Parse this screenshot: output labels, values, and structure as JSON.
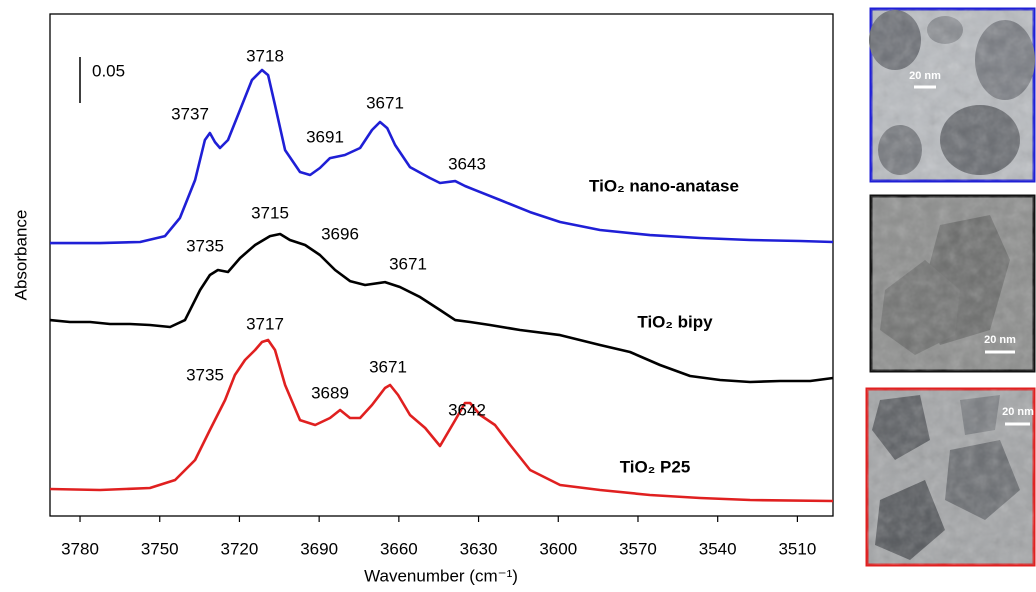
{
  "chart_data": {
    "type": "line",
    "xlabel": "Wavenumber (cm⁻¹)",
    "ylabel": "Absorbance",
    "xlim": [
      3791.3,
      3496.6
    ],
    "ylim": [
      0,
      0.5457
    ],
    "xticks": [
      3780,
      3750,
      3720,
      3690,
      3660,
      3630,
      3600,
      3570,
      3540,
      3510
    ],
    "scale_bar": {
      "value": 0.05,
      "label": "0.05"
    },
    "series": [
      {
        "name": "TiO₂ nano-anatase",
        "color": "#1f1fd6",
        "x": [
          3791.3,
          3772.5,
          3757.4,
          3748.0,
          3742.4,
          3736.7,
          3733.0,
          3731.1,
          3729.2,
          3727.3,
          3724.3,
          3719.8,
          3715.3,
          3711.5,
          3709.2,
          3706.6,
          3702.8,
          3697.2,
          3693.4,
          3689.7,
          3685.9,
          3680.3,
          3674.6,
          3670.1,
          3667.1,
          3664.4,
          3661.4,
          3655.8,
          3648.3,
          3644.5,
          3638.8,
          3635.1,
          3631.3,
          3621.9,
          3610.6,
          3599.3,
          3584.3,
          3565.5,
          3546.6,
          3527.8,
          3509.0,
          3496.6
        ],
        "values": [
          0.2967,
          0.2967,
          0.2978,
          0.3043,
          0.3239,
          0.3652,
          0.4087,
          0.4163,
          0.4065,
          0.4,
          0.4087,
          0.4413,
          0.4739,
          0.4848,
          0.4793,
          0.4467,
          0.3978,
          0.3739,
          0.3707,
          0.3783,
          0.3891,
          0.3924,
          0.4,
          0.4196,
          0.4283,
          0.4217,
          0.4033,
          0.3793,
          0.3674,
          0.362,
          0.3641,
          0.3587,
          0.3543,
          0.3435,
          0.3304,
          0.3196,
          0.3109,
          0.3054,
          0.3022,
          0.3,
          0.2989,
          0.2978
        ],
        "peak_labels": [
          3737,
          3718,
          3691,
          3671,
          3643
        ]
      },
      {
        "name": "TiO₂ bipy",
        "color": "#000000",
        "x": [
          3791.3,
          3783.8,
          3776.2,
          3768.7,
          3761.2,
          3753.7,
          3746.1,
          3740.5,
          3734.8,
          3731.1,
          3728.1,
          3724.3,
          3719.8,
          3714.1,
          3708.5,
          3704.7,
          3701.0,
          3695.3,
          3689.7,
          3684.0,
          3678.4,
          3672.7,
          3665.2,
          3659.6,
          3652.0,
          3644.5,
          3638.8,
          3633.2,
          3625.7,
          3614.4,
          3599.3,
          3584.3,
          3573.0,
          3561.7,
          3550.4,
          3539.1,
          3527.8,
          3516.5,
          3505.2,
          3496.6
        ],
        "values": [
          0.213,
          0.2109,
          0.2109,
          0.2087,
          0.2087,
          0.2076,
          0.2054,
          0.213,
          0.2457,
          0.262,
          0.2674,
          0.2652,
          0.2804,
          0.2946,
          0.3043,
          0.3065,
          0.3,
          0.2946,
          0.2837,
          0.2674,
          0.2554,
          0.2511,
          0.2543,
          0.2489,
          0.238,
          0.2239,
          0.213,
          0.2109,
          0.2076,
          0.2022,
          0.1967,
          0.1859,
          0.1783,
          0.1641,
          0.1522,
          0.1478,
          0.1457,
          0.1467,
          0.1467,
          0.15
        ],
        "peak_labels": [
          3735,
          3715,
          3696,
          3671
        ]
      },
      {
        "name": "TiO₂ P25",
        "color": "#e02020",
        "x": [
          3791.3,
          3772.5,
          3753.7,
          3744.2,
          3736.7,
          3731.1,
          3725.4,
          3721.7,
          3717.9,
          3714.1,
          3711.5,
          3709.2,
          3706.6,
          3702.8,
          3697.2,
          3691.5,
          3685.9,
          3682.1,
          3678.4,
          3674.6,
          3670.1,
          3665.2,
          3663.3,
          3660.3,
          3655.8,
          3650.1,
          3644.5,
          3638.8,
          3635.1,
          3633.2,
          3629.4,
          3623.8,
          3618.1,
          3610.6,
          3599.3,
          3584.3,
          3565.5,
          3546.6,
          3527.8,
          3496.6
        ],
        "values": [
          0.0293,
          0.0283,
          0.0304,
          0.0391,
          0.0609,
          0.0935,
          0.1261,
          0.1533,
          0.1696,
          0.1804,
          0.1891,
          0.1913,
          0.1804,
          0.1424,
          0.1043,
          0.0989,
          0.1065,
          0.1152,
          0.1065,
          0.1065,
          0.1207,
          0.1391,
          0.1424,
          0.1315,
          0.1098,
          0.0957,
          0.0761,
          0.1043,
          0.1228,
          0.1228,
          0.1098,
          0.0989,
          0.0772,
          0.05,
          0.0337,
          0.0283,
          0.0228,
          0.0196,
          0.0174,
          0.0163
        ],
        "peak_labels": [
          3717,
          3735,
          3689,
          3671,
          3642
        ]
      }
    ]
  },
  "micrographs": [
    {
      "scale_label": "20 nm"
    },
    {
      "scale_label": "20 nm"
    },
    {
      "scale_label": "20 nm"
    }
  ]
}
